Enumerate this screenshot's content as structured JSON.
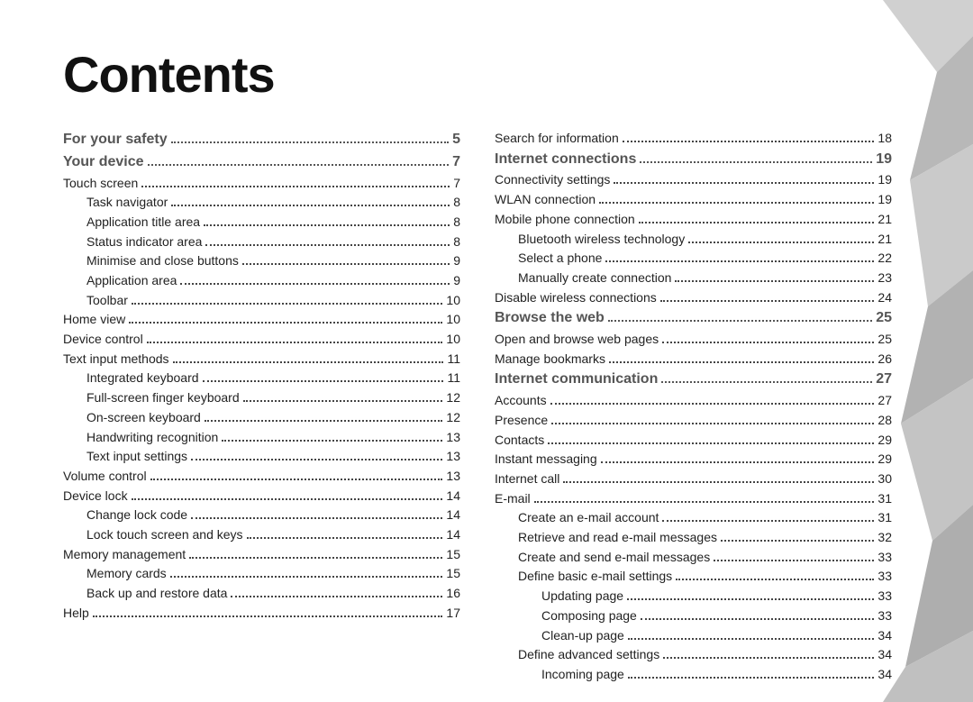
{
  "title": "Contents",
  "leftColumn": [
    {
      "label": "For your safety",
      "page": "5",
      "level": "h"
    },
    {
      "label": "Your device",
      "page": "7",
      "level": "h"
    },
    {
      "label": "Touch screen",
      "page": "7",
      "level": 0
    },
    {
      "label": "Task navigator",
      "page": "8",
      "level": 1
    },
    {
      "label": "Application title area",
      "page": "8",
      "level": 1
    },
    {
      "label": "Status indicator area",
      "page": "8",
      "level": 1
    },
    {
      "label": "Minimise and close buttons",
      "page": "9",
      "level": 1
    },
    {
      "label": "Application area",
      "page": "9",
      "level": 1
    },
    {
      "label": "Toolbar",
      "page": "10",
      "level": 1
    },
    {
      "label": "Home view",
      "page": "10",
      "level": 0
    },
    {
      "label": "Device control",
      "page": "10",
      "level": 0
    },
    {
      "label": "Text input methods",
      "page": "11",
      "level": 0
    },
    {
      "label": "Integrated keyboard",
      "page": "11",
      "level": 1
    },
    {
      "label": "Full-screen finger keyboard",
      "page": "12",
      "level": 1
    },
    {
      "label": "On-screen keyboard",
      "page": "12",
      "level": 1
    },
    {
      "label": "Handwriting recognition",
      "page": "13",
      "level": 1
    },
    {
      "label": "Text input settings",
      "page": "13",
      "level": 1
    },
    {
      "label": "Volume control",
      "page": "13",
      "level": 0
    },
    {
      "label": "Device lock",
      "page": "14",
      "level": 0
    },
    {
      "label": "Change lock code",
      "page": "14",
      "level": 1
    },
    {
      "label": "Lock touch screen and keys",
      "page": "14",
      "level": 1
    },
    {
      "label": "Memory management",
      "page": "15",
      "level": 0
    },
    {
      "label": "Memory cards",
      "page": "15",
      "level": 1
    },
    {
      "label": "Back up and restore data",
      "page": "16",
      "level": 1
    },
    {
      "label": "Help",
      "page": "17",
      "level": 0
    }
  ],
  "rightColumn": [
    {
      "label": "Search for information",
      "page": "18",
      "level": 0
    },
    {
      "label": "Internet connections",
      "page": "19",
      "level": "h"
    },
    {
      "label": "Connectivity settings",
      "page": "19",
      "level": 0
    },
    {
      "label": "WLAN connection",
      "page": "19",
      "level": 0
    },
    {
      "label": "Mobile phone connection",
      "page": "21",
      "level": 0
    },
    {
      "label": "Bluetooth wireless technology",
      "page": "21",
      "level": 1
    },
    {
      "label": "Select a phone",
      "page": "22",
      "level": 1
    },
    {
      "label": "Manually create connection",
      "page": "23",
      "level": 1
    },
    {
      "label": "Disable wireless connections",
      "page": "24",
      "level": 0
    },
    {
      "label": "Browse the web",
      "page": "25",
      "level": "h"
    },
    {
      "label": "Open and browse web pages",
      "page": "25",
      "level": 0
    },
    {
      "label": "Manage bookmarks",
      "page": "26",
      "level": 0
    },
    {
      "label": "Internet communication",
      "page": "27",
      "level": "h"
    },
    {
      "label": "Accounts",
      "page": "27",
      "level": 0
    },
    {
      "label": "Presence",
      "page": "28",
      "level": 0
    },
    {
      "label": "Contacts",
      "page": "29",
      "level": 0
    },
    {
      "label": "Instant messaging",
      "page": "29",
      "level": 0
    },
    {
      "label": "Internet call",
      "page": "30",
      "level": 0
    },
    {
      "label": "E-mail",
      "page": "31",
      "level": 0
    },
    {
      "label": "Create an e-mail account",
      "page": "31",
      "level": 1
    },
    {
      "label": "Retrieve and read e-mail messages",
      "page": "32",
      "level": 1
    },
    {
      "label": "Create and send e-mail messages",
      "page": "33",
      "level": 1
    },
    {
      "label": "Define basic e-mail settings",
      "page": "33",
      "level": 1
    },
    {
      "label": "Updating page",
      "page": "33",
      "level": 2
    },
    {
      "label": "Composing page",
      "page": "33",
      "level": 2
    },
    {
      "label": "Clean-up page",
      "page": "34",
      "level": 2
    },
    {
      "label": "Define advanced settings",
      "page": "34",
      "level": 1
    },
    {
      "label": "Incoming page",
      "page": "34",
      "level": 2
    }
  ]
}
